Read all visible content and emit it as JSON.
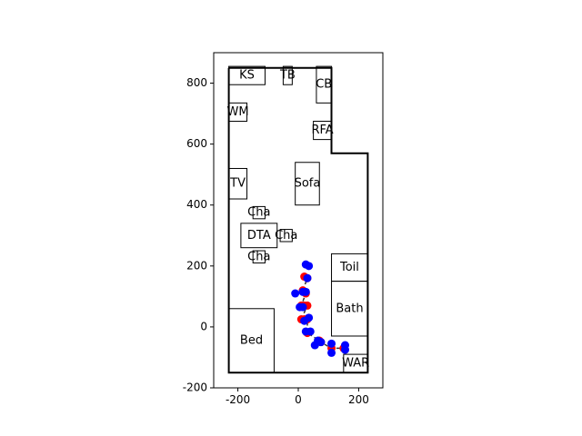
{
  "chart_data": {
    "type": "scatter",
    "title": "",
    "xlabel": "",
    "ylabel": "",
    "xlim": [
      -280,
      280
    ],
    "ylim": [
      -200,
      900
    ],
    "x_ticks": [
      -200,
      0,
      200
    ],
    "y_ticks": [
      -200,
      0,
      200,
      400,
      600,
      800
    ],
    "grid": false,
    "walls": [
      [
        [
          -230,
          850
        ],
        [
          110,
          850
        ],
        [
          110,
          570
        ],
        [
          230,
          570
        ],
        [
          230,
          -150
        ],
        [
          -230,
          -150
        ],
        [
          -230,
          850
        ]
      ]
    ],
    "rooms": [
      {
        "label": "KS",
        "x0": -230,
        "y0": 795,
        "x1": -110,
        "y1": 855
      },
      {
        "label": "TB",
        "x0": -50,
        "y0": 795,
        "x1": -20,
        "y1": 855
      },
      {
        "label": "CB",
        "x0": 60,
        "y0": 735,
        "x1": 110,
        "y1": 855
      },
      {
        "label": "WM",
        "x0": -230,
        "y0": 675,
        "x1": -170,
        "y1": 735
      },
      {
        "label": "RFA",
        "x0": 50,
        "y0": 615,
        "x1": 110,
        "y1": 675
      },
      {
        "label": "TV",
        "x0": -230,
        "y0": 420,
        "x1": -170,
        "y1": 520
      },
      {
        "label": "Sofa",
        "x0": -10,
        "y0": 400,
        "x1": 70,
        "y1": 540
      },
      {
        "label": "Cha",
        "x0": -150,
        "y0": 355,
        "x1": -110,
        "y1": 395
      },
      {
        "label": "DTA",
        "x0": -190,
        "y0": 260,
        "x1": -70,
        "y1": 340
      },
      {
        "label": "Cha",
        "x0": -60,
        "y0": 280,
        "x1": -20,
        "y1": 320
      },
      {
        "label": "Cha",
        "x0": -150,
        "y0": 210,
        "x1": -110,
        "y1": 250
      },
      {
        "label": "Toil",
        "x0": 110,
        "y0": 150,
        "x1": 230,
        "y1": 240
      },
      {
        "label": "Bath",
        "x0": 110,
        "y0": -30,
        "x1": 230,
        "y1": 150
      },
      {
        "label": "Bed",
        "x0": -230,
        "y0": -150,
        "x1": -80,
        "y1": 60
      },
      {
        "label": "WAR",
        "x0": 150,
        "y0": -150,
        "x1": 230,
        "y1": -90
      }
    ],
    "series": [
      {
        "color": "#ff0000",
        "points": [
          [
            20,
            165
          ],
          [
            30,
            160
          ],
          [
            15,
            120
          ],
          [
            25,
            110
          ],
          [
            10,
            70
          ],
          [
            20,
            70
          ],
          [
            30,
            70
          ],
          [
            10,
            25
          ],
          [
            20,
            25
          ],
          [
            30,
            25
          ],
          [
            30,
            -20
          ],
          [
            70,
            -45
          ],
          [
            75,
            -50
          ],
          [
            110,
            -70
          ],
          [
            150,
            -70
          ]
        ]
      },
      {
        "color": "#0000ff",
        "points": [
          [
            25,
            205
          ],
          [
            35,
            200
          ],
          [
            30,
            160
          ],
          [
            -10,
            110
          ],
          [
            15,
            115
          ],
          [
            25,
            115
          ],
          [
            5,
            65
          ],
          [
            15,
            65
          ],
          [
            20,
            20
          ],
          [
            35,
            30
          ],
          [
            25,
            -15
          ],
          [
            40,
            -15
          ],
          [
            65,
            -45
          ],
          [
            55,
            -60
          ],
          [
            75,
            -50
          ],
          [
            110,
            -55
          ],
          [
            110,
            -85
          ],
          [
            155,
            -60
          ],
          [
            155,
            -75
          ]
        ]
      }
    ],
    "path_color": "#333333"
  }
}
